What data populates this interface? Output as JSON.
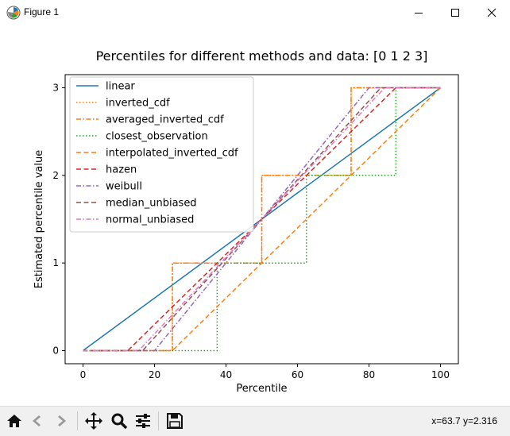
{
  "window": {
    "title": "Figure 1"
  },
  "toolbar": {
    "buttons": [
      "home",
      "back",
      "forward",
      "pan",
      "zoom",
      "subplots",
      "save"
    ],
    "coords_text": "x=63.7 y=2.316"
  },
  "chart_data": {
    "type": "line",
    "title": "Percentiles for different methods and data: [0 1 2 3]",
    "xlabel": "Percentile",
    "ylabel": "Estimated percentile value",
    "xlim": [
      -5,
      105
    ],
    "ylim": [
      -0.15,
      3.15
    ],
    "xticks": [
      0,
      20,
      40,
      60,
      80,
      100
    ],
    "yticks": [
      0,
      1,
      2,
      3
    ],
    "legend_position": "upper-left",
    "series": [
      {
        "name": "linear",
        "color": "#1f77b4",
        "dash": "",
        "points": [
          [
            0,
            0
          ],
          [
            100,
            3
          ]
        ]
      },
      {
        "name": "inverted_cdf",
        "color": "#ff7f0e",
        "dash": "1.5 2.5",
        "points": [
          [
            0,
            0
          ],
          [
            25,
            0
          ],
          [
            25,
            1
          ],
          [
            50,
            1
          ],
          [
            50,
            2
          ],
          [
            75,
            2
          ],
          [
            75,
            3
          ],
          [
            100,
            3
          ]
        ]
      },
      {
        "name": "averaged_inverted_cdf",
        "color": "#ff7f0e",
        "dash": "6 2.5 1.5 2.5",
        "points": [
          [
            0,
            0
          ],
          [
            25,
            0
          ],
          [
            25,
            1
          ],
          [
            50,
            1
          ],
          [
            50,
            2
          ],
          [
            75,
            2
          ],
          [
            75,
            3
          ],
          [
            100,
            3
          ]
        ]
      },
      {
        "name": "closest_observation",
        "color": "#2ca02c",
        "dash": "1.5 2.5",
        "points": [
          [
            0,
            0
          ],
          [
            37.5,
            0
          ],
          [
            37.5,
            1
          ],
          [
            62.5,
            1
          ],
          [
            62.5,
            2
          ],
          [
            87.5,
            2
          ],
          [
            87.5,
            3
          ],
          [
            100,
            3
          ]
        ]
      },
      {
        "name": "interpolated_inverted_cdf",
        "color": "#ff7f0e",
        "dash": "6 3.5",
        "points": [
          [
            0,
            0
          ],
          [
            25,
            0
          ],
          [
            100,
            3
          ]
        ]
      },
      {
        "name": "hazen",
        "color": "#d62728",
        "dash": "6 3.5",
        "points": [
          [
            0,
            0
          ],
          [
            12.5,
            0
          ],
          [
            87.5,
            3
          ],
          [
            100,
            3
          ]
        ]
      },
      {
        "name": "weibull",
        "color": "#9467bd",
        "dash": "6 2.5 1.5 2.5",
        "points": [
          [
            0,
            0
          ],
          [
            20,
            0
          ],
          [
            80,
            3
          ],
          [
            100,
            3
          ]
        ]
      },
      {
        "name": "median_unbiased",
        "color": "#8c564b",
        "dash": "6 3.5",
        "points": [
          [
            0,
            0
          ],
          [
            16.7,
            0
          ],
          [
            83.3,
            3
          ],
          [
            100,
            3
          ]
        ]
      },
      {
        "name": "normal_unbiased",
        "color": "#e377c2",
        "dash": "6 2.5 1.5 2.5",
        "points": [
          [
            0,
            0
          ],
          [
            15.6,
            0
          ],
          [
            84.4,
            3
          ],
          [
            100,
            3
          ]
        ]
      }
    ]
  }
}
